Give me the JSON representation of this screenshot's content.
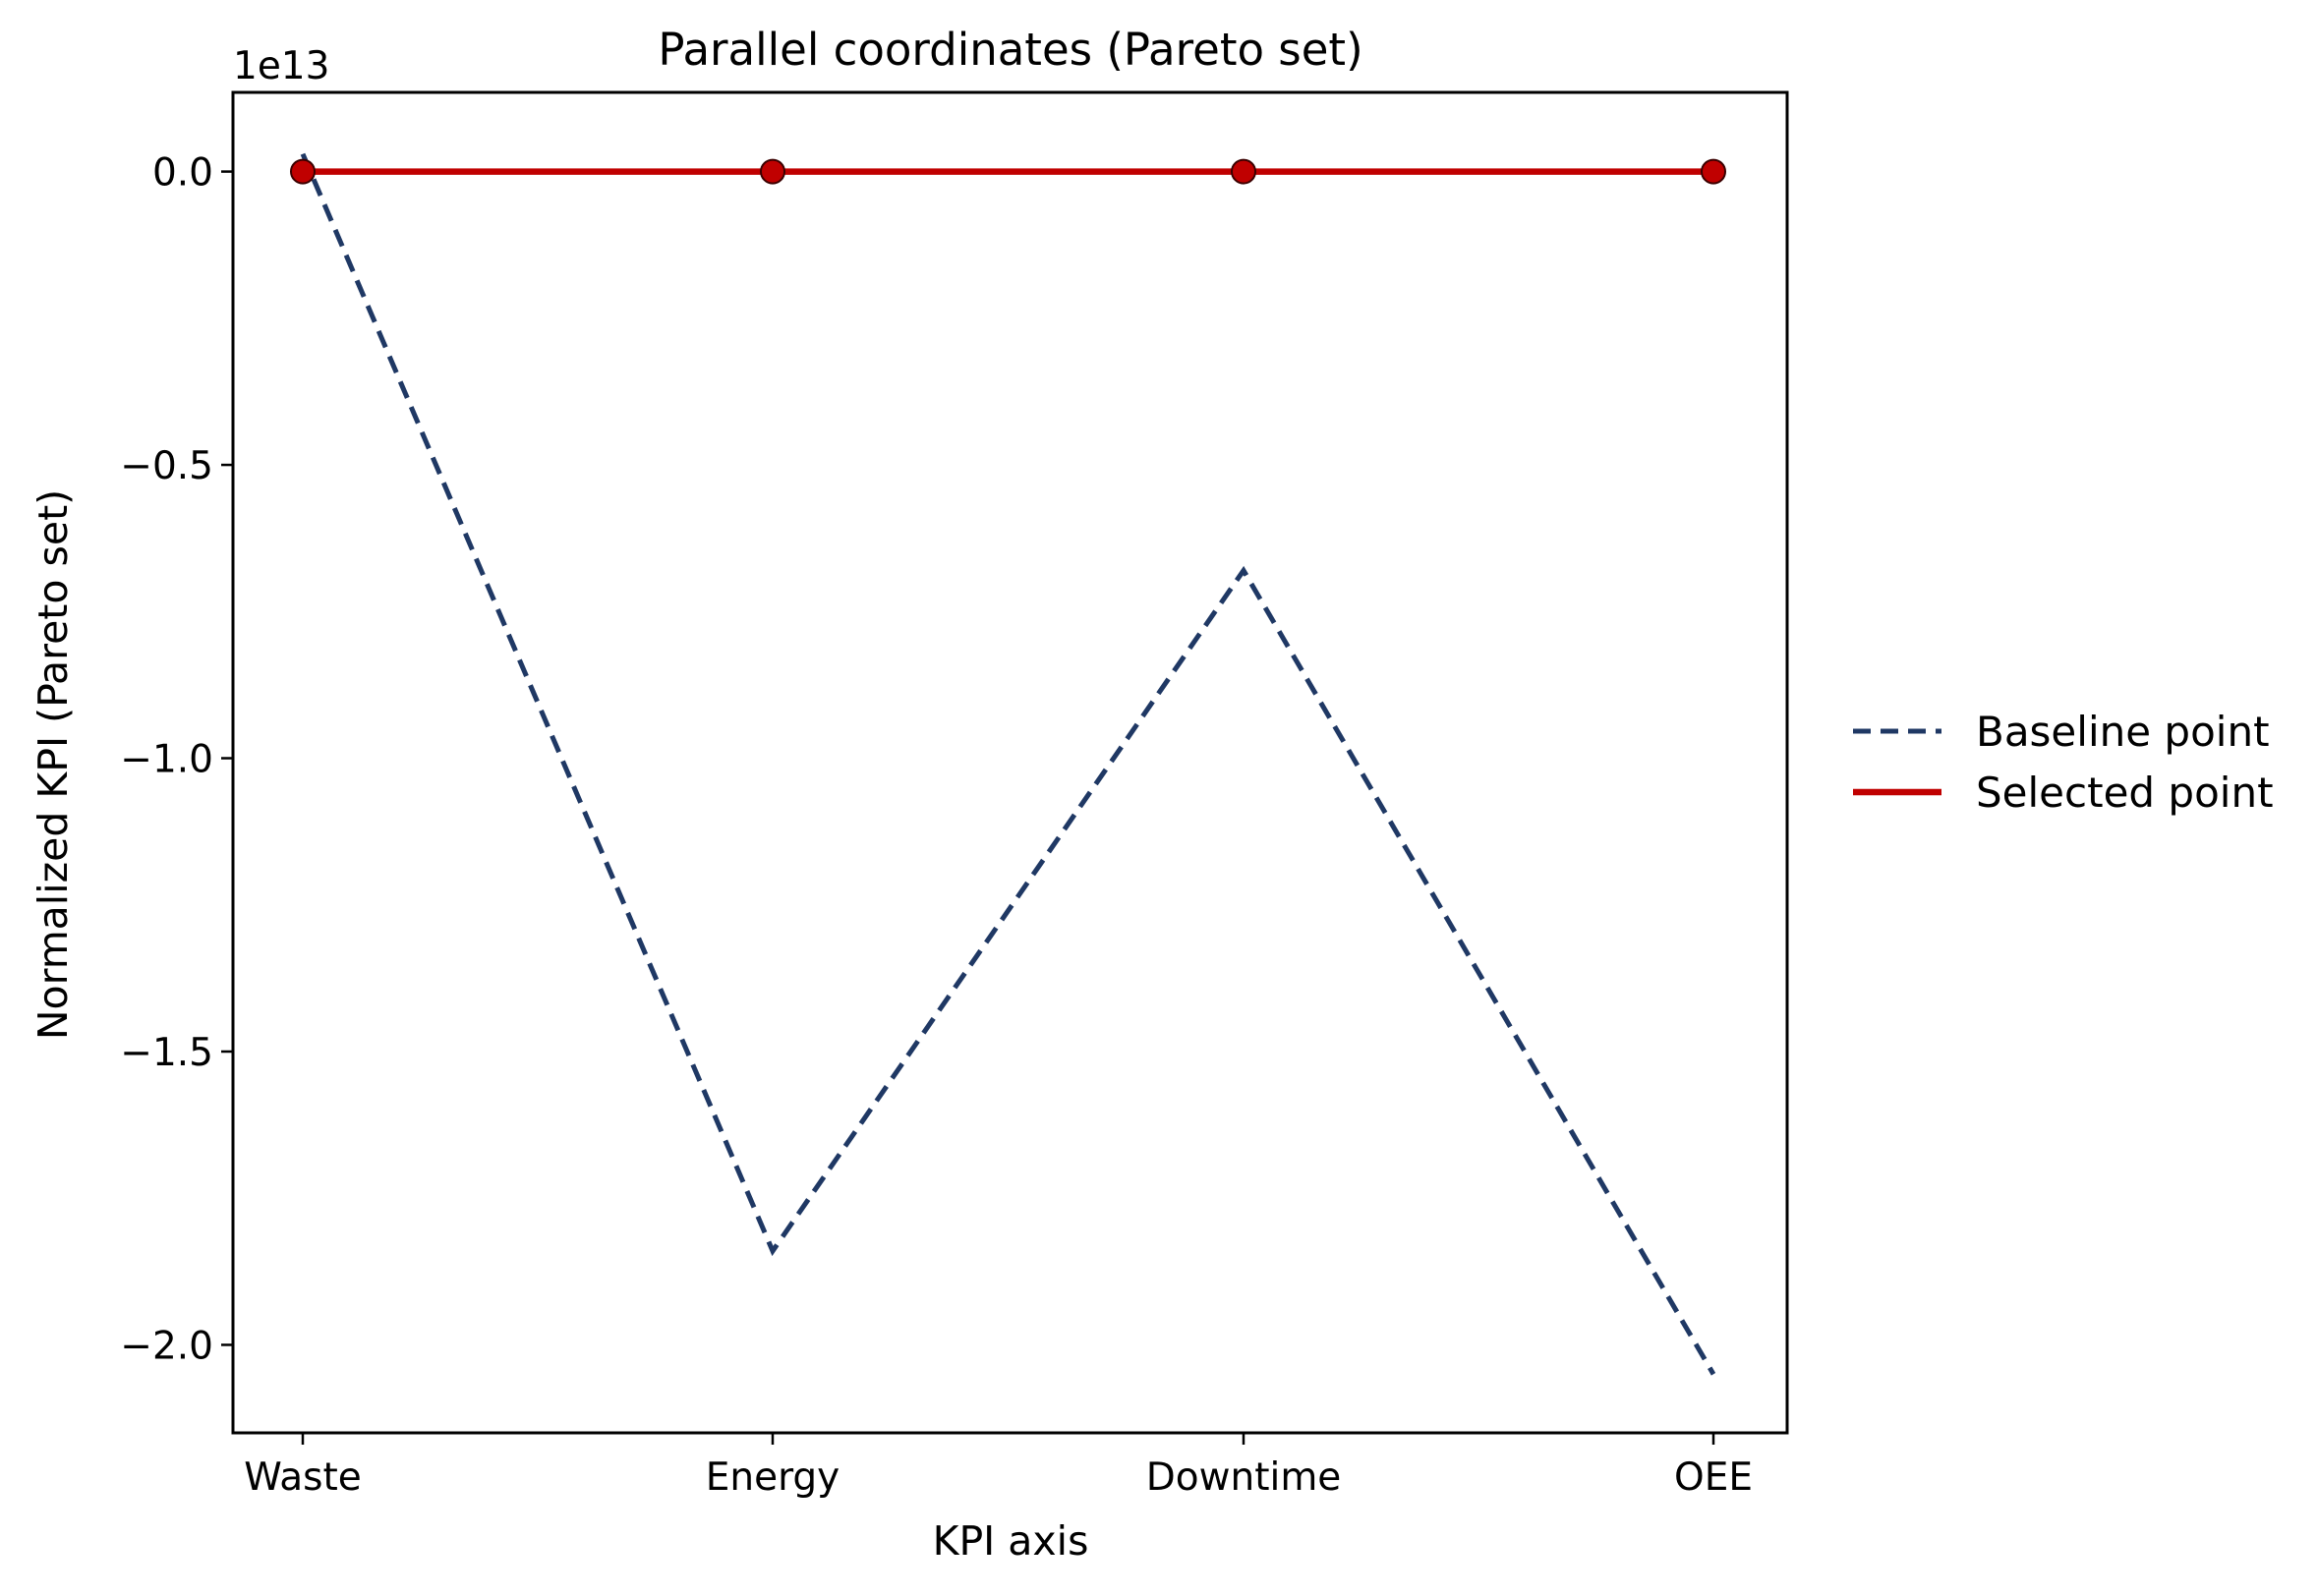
{
  "chart_data": {
    "type": "line",
    "title": "Parallel coordinates (Pareto set)",
    "xlabel": "KPI axis",
    "ylabel": "Normalized KPI (Pareto set)",
    "y_offset_label": "1e13",
    "y_scale": 10000000000000.0,
    "categories": [
      "Waste",
      "Energy",
      "Downtime",
      "OEE"
    ],
    "y_ticks": [
      0.0,
      -0.5,
      -1.0,
      -1.5,
      -2.0
    ],
    "y_tick_labels": [
      "0.0",
      "−0.5",
      "−1.0",
      "−1.5",
      "−2.0"
    ],
    "ylim": [
      -2.15,
      0.135
    ],
    "grid": false,
    "legend_position": "outside-right",
    "series": [
      {
        "name": "Baseline point",
        "style": "dashed",
        "color": "#1f3864",
        "markers": false,
        "values": [
          0.03,
          -1.84,
          -0.68,
          -2.05
        ]
      },
      {
        "name": "Selected point",
        "style": "solid",
        "color": "#c00000",
        "markers": true,
        "values": [
          0.0,
          0.0,
          0.0,
          0.0
        ]
      }
    ]
  }
}
